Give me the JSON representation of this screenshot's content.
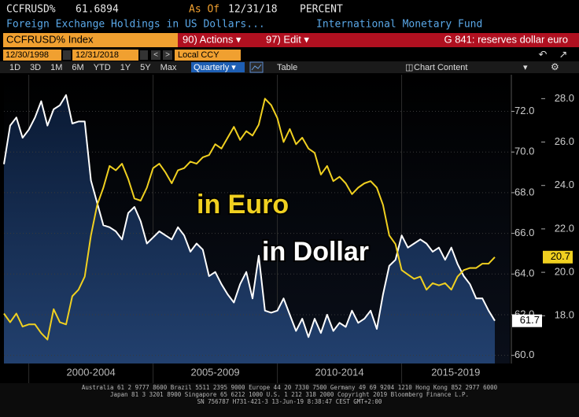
{
  "header": {
    "ticker": "CCFRUSD%",
    "last": "61.6894",
    "as_of_label": "As Of",
    "as_of": "12/31/18",
    "units": "PERCENT",
    "description": "Foreign Exchange Holdings in US Dollars...",
    "source": "International Monetary Fund"
  },
  "toolbar": {
    "security": "CCFRUSD% Index",
    "actions": "90) Actions ▾",
    "edit": "97) Edit ▾",
    "chart_name": "G 841: reserves dollar euro",
    "start_date": "12/30/1998",
    "end_date": "12/31/2018",
    "currency": "Local CCY",
    "ranges": [
      "1D",
      "3D",
      "1M",
      "6M",
      "YTD",
      "1Y",
      "5Y",
      "Max"
    ],
    "frequency": "Quarterly ▾",
    "table": "Table",
    "chart_content": "Chart Content"
  },
  "chart_data": {
    "type": "line",
    "annotations": [
      "in Euro",
      "in Dollar"
    ],
    "x": [
      1999,
      1999.25,
      1999.5,
      1999.75,
      2000,
      2000.25,
      2000.5,
      2000.75,
      2001,
      2001.25,
      2001.5,
      2001.75,
      2002,
      2002.25,
      2002.5,
      2002.75,
      2003,
      2003.25,
      2003.5,
      2003.75,
      2004,
      2004.25,
      2004.5,
      2004.75,
      2005,
      2005.25,
      2005.5,
      2005.75,
      2006,
      2006.25,
      2006.5,
      2006.75,
      2007,
      2007.25,
      2007.5,
      2007.75,
      2008,
      2008.25,
      2008.5,
      2008.75,
      2009,
      2009.25,
      2009.5,
      2009.75,
      2010,
      2010.25,
      2010.5,
      2010.75,
      2011,
      2011.25,
      2011.5,
      2011.75,
      2012,
      2012.25,
      2012.5,
      2012.75,
      2013,
      2013.25,
      2013.5,
      2013.75,
      2014,
      2014.25,
      2014.5,
      2014.75,
      2015,
      2015.25,
      2015.5,
      2015.75,
      2016,
      2016.25,
      2016.5,
      2016.75,
      2017,
      2017.25,
      2017.5,
      2017.75,
      2018,
      2018.25,
      2018.5,
      2018.75
    ],
    "xlim": [
      1999,
      2019.35
    ],
    "xticks": [
      {
        "value": 2000,
        "label": "2000-2004"
      },
      {
        "value": 2005,
        "label": "2005-2009"
      },
      {
        "value": 2010,
        "label": "2010-2014"
      },
      {
        "value": 2015,
        "label": "2015-2019"
      }
    ],
    "ylim": [
      59.6,
      73.8
    ],
    "yticks": [
      {
        "value": 60,
        "label": "60.0"
      },
      {
        "value": 62,
        "label": "62.0"
      },
      {
        "value": 64,
        "label": "64.0"
      },
      {
        "value": 66,
        "label": "66.0"
      },
      {
        "value": 68,
        "label": "68.0"
      },
      {
        "value": 70,
        "label": "70.0"
      },
      {
        "value": 72,
        "label": "72.0"
      }
    ],
    "y2lim": [
      15.8,
      29.1
    ],
    "y2ticks": [
      {
        "value": 18,
        "label": "18.0"
      },
      {
        "value": 20,
        "label": "20.0"
      },
      {
        "value": 22,
        "label": "22.0"
      },
      {
        "value": 24,
        "label": "24.0"
      },
      {
        "value": 26,
        "label": "26.0"
      },
      {
        "value": 28,
        "label": "28.0"
      }
    ],
    "grid": true,
    "series": [
      {
        "color": "#ffffff",
        "area": true,
        "last_value_label": "61.7",
        "values": [
          69.4,
          71.3,
          71.7,
          70.7,
          71.1,
          71.7,
          72.5,
          71.3,
          72.1,
          72.3,
          72.8,
          71.4,
          71.5,
          71.5,
          68.6,
          67.5,
          66.4,
          66.3,
          66.1,
          65.7,
          67.0,
          67.3,
          66.6,
          65.5,
          65.8,
          66.1,
          65.9,
          65.7,
          66.3,
          65.9,
          65.1,
          65.5,
          65.2,
          63.9,
          64.1,
          63.5,
          63.0,
          62.6,
          63.5,
          64.1,
          62.8,
          64.9,
          62.2,
          62.1,
          62.2,
          62.8,
          62.0,
          61.2,
          61.8,
          60.9,
          61.8,
          61.1,
          62.0,
          61.2,
          61.6,
          61.4,
          62.2,
          61.6,
          61.8,
          62.2,
          61.3,
          63.0,
          64.4,
          64.7,
          65.9,
          65.3,
          65.5,
          65.7,
          65.5,
          65.1,
          65.3,
          64.7,
          65.3,
          64.5,
          63.9,
          63.5,
          62.8,
          62.8,
          62.2,
          61.7
        ]
      },
      {
        "color": "#f0d020",
        "axis": "y2",
        "last_value_label": "20.7",
        "values": [
          18.1,
          17.7,
          18.1,
          17.5,
          17.6,
          17.6,
          17.2,
          16.9,
          18.3,
          17.7,
          17.6,
          18.9,
          19.2,
          19.8,
          21.7,
          23.1,
          23.9,
          24.9,
          24.7,
          25.0,
          24.3,
          23.4,
          23.3,
          23.9,
          24.8,
          25.0,
          24.6,
          24.1,
          24.7,
          24.8,
          25.1,
          25.0,
          25.3,
          25.4,
          25.9,
          25.7,
          26.2,
          26.7,
          26.1,
          26.5,
          26.3,
          26.8,
          28.0,
          27.7,
          27.1,
          26.0,
          26.6,
          25.9,
          26.2,
          25.7,
          25.5,
          24.5,
          24.9,
          24.2,
          24.4,
          24.1,
          23.6,
          23.9,
          24.1,
          24.2,
          23.9,
          23.1,
          21.7,
          21.3,
          20.1,
          19.9,
          19.7,
          19.8,
          19.2,
          19.5,
          19.4,
          19.5,
          19.2,
          19.8,
          20.1,
          20.2,
          20.2,
          20.4,
          20.4,
          20.7
        ]
      }
    ]
  },
  "footer": [
    "Australia 61 2 9777 8600 Brazil 5511 2395 9000 Europe 44 20 7330 7500 Germany 49 69 9204 1210 Hong Kong 852 2977 6000",
    "Japan 81 3 3201 8900        Singapore 65 6212 1000        U.S. 1 212 318 2000        Copyright 2019 Bloomberg Finance L.P.",
    "SN 756787 H731-421-3 13-Jun-19  8:38:47 CEST GMT+2:00"
  ]
}
